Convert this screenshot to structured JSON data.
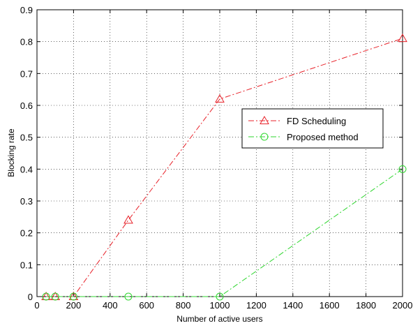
{
  "chart_data": {
    "type": "line",
    "title": "",
    "xlabel": "Number of active users",
    "ylabel": "Blocking rate",
    "xlim": [
      0,
      2000
    ],
    "ylim": [
      0,
      0.9
    ],
    "xticks": [
      0,
      200,
      400,
      600,
      800,
      1000,
      1200,
      1400,
      1600,
      1800,
      2000
    ],
    "yticks": [
      0,
      0.1,
      0.2,
      0.3,
      0.4,
      0.5,
      0.6,
      0.7,
      0.8,
      0.9
    ],
    "xtick_labels": [
      "0",
      "200",
      "400",
      "600",
      "800",
      "1000",
      "1200",
      "1400",
      "1600",
      "1800",
      "2000"
    ],
    "ytick_labels": [
      "0",
      "0.1",
      "0.2",
      "0.3",
      "0.4",
      "0.5",
      "0.6",
      "0.7",
      "0.8",
      "0.9"
    ],
    "grid": true,
    "legend_position": "center-right",
    "series": [
      {
        "name": "FD Scheduling",
        "color": "#e8222a",
        "marker": "triangle",
        "line_style": "dash-dot",
        "x": [
          50,
          100,
          200,
          500,
          1000,
          2000
        ],
        "y": [
          0,
          0,
          0,
          0.24,
          0.62,
          0.81
        ]
      },
      {
        "name": "Proposed method",
        "color": "#2ed62e",
        "marker": "circle",
        "line_style": "dash-dot",
        "x": [
          50,
          100,
          200,
          500,
          1000,
          2000
        ],
        "y": [
          0,
          0,
          0,
          0,
          0,
          0.4
        ]
      }
    ]
  }
}
